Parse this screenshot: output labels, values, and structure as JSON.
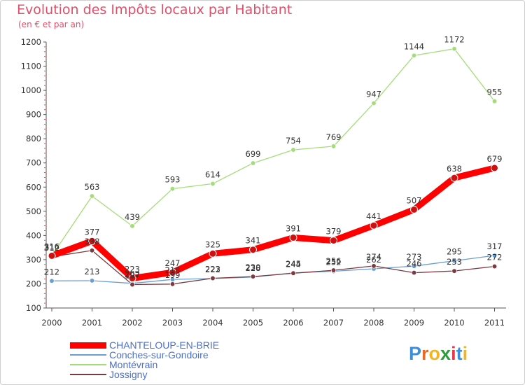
{
  "header": {
    "title": "Evolution des Impôts locaux par Habitant",
    "subtitle": "(en € et par an)"
  },
  "logo": {
    "text": "Proxiti",
    "letter_colors": [
      "#3c8fd6",
      "#e86a2a",
      "#f2b51f",
      "#2a9a3a",
      "#e8374b",
      "#3c8fd6",
      "#f2b51f"
    ]
  },
  "chart_data": {
    "type": "line",
    "title": "Evolution des Impôts locaux par Habitant",
    "subtitle": "(en € et par an)",
    "xlabel": "",
    "ylabel": "",
    "x": [
      "2000",
      "2001",
      "2002",
      "2003",
      "2004",
      "2005",
      "2006",
      "2007",
      "2008",
      "2009",
      "2010",
      "2011"
    ],
    "ylim": [
      100,
      1200
    ],
    "yticks": [
      100,
      200,
      300,
      400,
      500,
      600,
      700,
      800,
      900,
      1000,
      1100,
      1200
    ],
    "grid": false,
    "legend_position": "bottom-left",
    "series": [
      {
        "name": "CHANTELOUP-EN-BRIE",
        "values": [
          316,
          377,
          223,
          247,
          325,
          341,
          391,
          379,
          441,
          507,
          638,
          679
        ],
        "labels": [
          "316",
          "377",
          "223",
          "247",
          "325",
          "341",
          "391",
          "379",
          "441",
          "507",
          "638",
          "679"
        ],
        "color": "#ff0000",
        "width": 9
      },
      {
        "name": "Conches-sur-Gondoire",
        "values": [
          212,
          213,
          202,
          218,
          222,
          228,
          245,
          252,
          262,
          273,
          295,
          317
        ],
        "labels": [
          "212",
          "213",
          "202",
          "218",
          "222",
          "228",
          "245",
          "252",
          "262",
          "273",
          "295",
          "317"
        ],
        "color": "#6a9fd2",
        "width": 1.3
      },
      {
        "name": "Montévrain",
        "values": [
          316,
          563,
          439,
          593,
          614,
          699,
          754,
          769,
          947,
          1144,
          1172,
          955
        ],
        "labels": [
          "316",
          "563",
          "439",
          "593",
          "614",
          "699",
          "754",
          "769",
          "947",
          "1144",
          "1172",
          "955"
        ],
        "color": "#a5dc7a",
        "width": 1.3
      },
      {
        "name": "Jossigny",
        "values": [
          312,
          338,
          197,
          199,
          223,
          230,
          244,
          256,
          274,
          246,
          253,
          272
        ],
        "labels": [
          "312",
          "338",
          "197",
          "199",
          "223",
          "230",
          "244",
          "256",
          "274",
          "246",
          "253",
          "272"
        ],
        "color": "#7a3a40",
        "width": 1.3
      }
    ]
  }
}
